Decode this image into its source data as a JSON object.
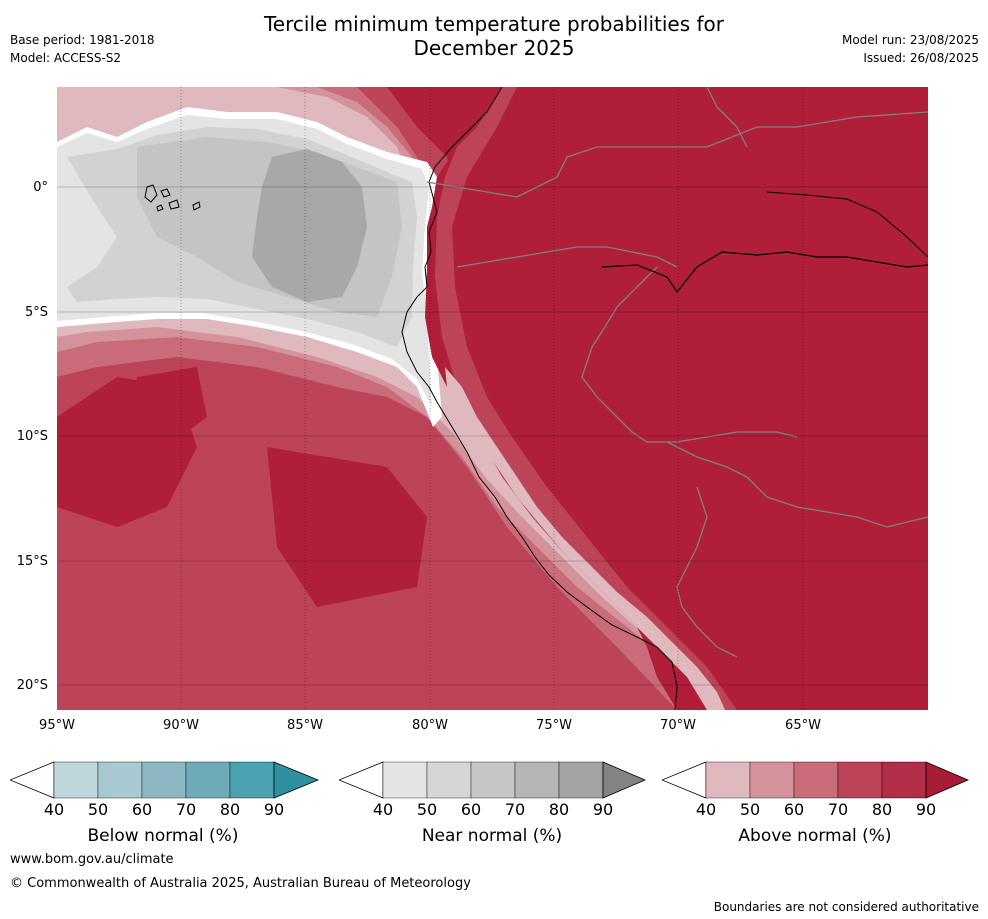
{
  "header": {
    "title_line1": "Tercile minimum temperature probabilities for",
    "title_line2": "December 2025",
    "base_period": "Base period: 1981-2018",
    "model": "Model: ACCESS-S2",
    "model_run": "Model run: 23/08/2025",
    "issued": "Issued: 26/08/2025"
  },
  "map": {
    "latitude_labels": [
      "0°",
      "5°S",
      "10°S",
      "15°S",
      "20°S"
    ],
    "longitude_labels": [
      "95°W",
      "90°W",
      "85°W",
      "80°W",
      "75°W",
      "70°W",
      "65°W"
    ],
    "colors": {
      "ocean_above_90": "#b01e3a",
      "above_80": "#bd4458",
      "above_70": "#c96b79",
      "above_60": "#d4939c",
      "above_50": "#e0b9be",
      "near_50": "#e4e4e4",
      "near_60": "#d2d2d2",
      "near_70": "#c4c4c4",
      "near_80": "#a8a8a8",
      "white": "#ffffff"
    }
  },
  "legends": [
    {
      "title": "Below normal (%)",
      "ticks": [
        "40",
        "50",
        "60",
        "70",
        "80",
        "90"
      ],
      "colors": [
        "#ffffff",
        "#bfd6dc",
        "#a8c9d1",
        "#8cb8c4",
        "#6eaab7",
        "#4ba1b0",
        "#2f8fa0"
      ]
    },
    {
      "title": "Near normal (%)",
      "ticks": [
        "40",
        "50",
        "60",
        "70",
        "80",
        "90"
      ],
      "colors": [
        "#ffffff",
        "#e4e4e4",
        "#d6d6d6",
        "#c6c6c6",
        "#b5b5b5",
        "#a3a3a3",
        "#838383"
      ]
    },
    {
      "title": "Above normal (%)",
      "ticks": [
        "40",
        "50",
        "60",
        "70",
        "80",
        "90"
      ],
      "colors": [
        "#ffffff",
        "#e0b9be",
        "#d4939c",
        "#c96b79",
        "#bd4458",
        "#b22e48",
        "#a81c38"
      ]
    }
  ],
  "footer": {
    "website": "www.bom.gov.au/climate",
    "copyright": "© Commonwealth of Australia 2025, Australian Bureau of Meteorology",
    "disclaimer": "Boundaries are not considered authoritative"
  }
}
